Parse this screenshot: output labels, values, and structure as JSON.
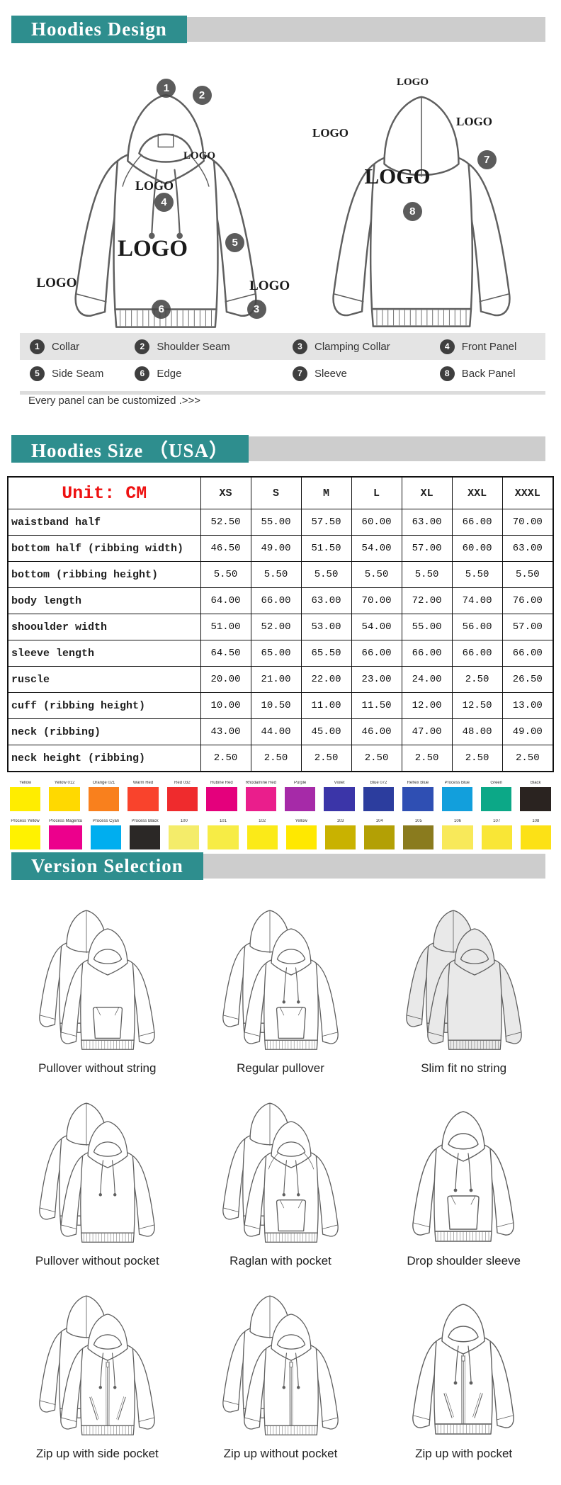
{
  "theme": {
    "teal": "#2e8e8e",
    "gray_strip": "#cdcdcd",
    "legend_bg": "#e4e4e4",
    "badge_bg": "#3f3f3f",
    "unit_red": "#ee1111"
  },
  "headers": {
    "design": "Hoodies Design",
    "size": "Hoodies Size （USA）",
    "version": "Version Selection"
  },
  "design": {
    "logo_text": "LOGO",
    "badges": [
      "1",
      "2",
      "3",
      "4",
      "5",
      "6",
      "7",
      "8"
    ]
  },
  "legend": {
    "rows": [
      [
        {
          "num": "1",
          "label": "Collar"
        },
        {
          "num": "2",
          "label": "Shoulder Seam"
        },
        {
          "num": "3",
          "label": "Clamping Collar"
        },
        {
          "num": "4",
          "label": "Front Panel"
        }
      ],
      [
        {
          "num": "5",
          "label": "Side Seam"
        },
        {
          "num": "6",
          "label": "Edge"
        },
        {
          "num": "7",
          "label": "Sleeve"
        },
        {
          "num": "8",
          "label": "Back Panel"
        }
      ]
    ],
    "note": "Every panel can be customized .>>>"
  },
  "size_table": {
    "unit_label": "Unit: CM",
    "columns": [
      "XS",
      "S",
      "M",
      "L",
      "XL",
      "XXL",
      "XXXL"
    ],
    "rows": [
      {
        "label": "waistband half",
        "values": [
          "52.50",
          "55.00",
          "57.50",
          "60.00",
          "63.00",
          "66.00",
          "70.00"
        ]
      },
      {
        "label": "bottom half (ribbing width)",
        "values": [
          "46.50",
          "49.00",
          "51.50",
          "54.00",
          "57.00",
          "60.00",
          "63.00"
        ]
      },
      {
        "label": "bottom (ribbing height)",
        "values": [
          "5.50",
          "5.50",
          "5.50",
          "5.50",
          "5.50",
          "5.50",
          "5.50"
        ]
      },
      {
        "label": "body length",
        "values": [
          "64.00",
          "66.00",
          "63.00",
          "70.00",
          "72.00",
          "74.00",
          "76.00"
        ]
      },
      {
        "label": "shooulder width",
        "values": [
          "51.00",
          "52.00",
          "53.00",
          "54.00",
          "55.00",
          "56.00",
          "57.00"
        ]
      },
      {
        "label": "sleeve length",
        "values": [
          "64.50",
          "65.00",
          "65.50",
          "66.00",
          "66.00",
          "66.00",
          "66.00"
        ]
      },
      {
        "label": "ruscle",
        "values": [
          "20.00",
          "21.00",
          "22.00",
          "23.00",
          "24.00",
          "2.50",
          "26.50"
        ]
      },
      {
        "label": "cuff (ribbing height)",
        "values": [
          "10.00",
          "10.50",
          "11.00",
          "11.50",
          "12.00",
          "12.50",
          "13.00"
        ]
      },
      {
        "label": "neck (ribbing)",
        "values": [
          "43.00",
          "44.00",
          "45.00",
          "46.00",
          "47.00",
          "48.00",
          "49.00"
        ]
      },
      {
        "label": "neck height (ribbing)",
        "values": [
          "2.50",
          "2.50",
          "2.50",
          "2.50",
          "2.50",
          "2.50",
          "2.50"
        ]
      }
    ]
  },
  "palette": {
    "row1": [
      {
        "name": "Yellow",
        "hex": "#FFED00"
      },
      {
        "name": "Yellow 012",
        "hex": "#FFD900"
      },
      {
        "name": "Orange 021",
        "hex": "#F9801D"
      },
      {
        "name": "Warm Red",
        "hex": "#F9432C"
      },
      {
        "name": "Red 032",
        "hex": "#EF2B2D"
      },
      {
        "name": "Rubine Red",
        "hex": "#E4007C"
      },
      {
        "name": "Rhodamine Red",
        "hex": "#EA1E8C"
      },
      {
        "name": "Purple",
        "hex": "#A62AA8"
      },
      {
        "name": "Violet",
        "hex": "#3B35A8"
      },
      {
        "name": "Blue 072",
        "hex": "#2C3D9E"
      },
      {
        "name": "Reflex Blue",
        "hex": "#2F4FB3"
      },
      {
        "name": "Process Blue",
        "hex": "#129FDC"
      },
      {
        "name": "Green",
        "hex": "#0CA887"
      },
      {
        "name": "Black",
        "hex": "#2A2320"
      }
    ],
    "row2": [
      {
        "name": "Process Yellow",
        "hex": "#FFF200"
      },
      {
        "name": "Process Magenta",
        "hex": "#EC008C"
      },
      {
        "name": "Process Cyan",
        "hex": "#00AEEF"
      },
      {
        "name": "Process Black",
        "hex": "#2B2826"
      },
      {
        "name": "100",
        "hex": "#F4EC6A"
      },
      {
        "name": "101",
        "hex": "#F7EC45"
      },
      {
        "name": "102",
        "hex": "#FBEA18"
      },
      {
        "name": "Yellow",
        "hex": "#FFE800"
      },
      {
        "name": "103",
        "hex": "#C9B200"
      },
      {
        "name": "104",
        "hex": "#B3A005"
      },
      {
        "name": "105",
        "hex": "#8A7B1E"
      },
      {
        "name": "106",
        "hex": "#F8E95A"
      },
      {
        "name": "107",
        "hex": "#F9E636"
      },
      {
        "name": "108",
        "hex": "#FCE116"
      }
    ]
  },
  "versions": [
    {
      "label": "Pullover without string",
      "variant": {
        "pair": true,
        "strings": false,
        "pocket": true,
        "zip": false,
        "sidePockets": false,
        "raglan": false,
        "fill": "#ffffff"
      }
    },
    {
      "label": "Regular pullover",
      "variant": {
        "pair": true,
        "strings": true,
        "pocket": true,
        "zip": false,
        "sidePockets": false,
        "raglan": false,
        "fill": "#ffffff"
      }
    },
    {
      "label": "Slim fit no string",
      "variant": {
        "pair": true,
        "strings": false,
        "pocket": false,
        "zip": false,
        "sidePockets": false,
        "raglan": false,
        "fill": "#e9e9e9"
      }
    },
    {
      "label": "Pullover without pocket",
      "variant": {
        "pair": true,
        "strings": true,
        "pocket": false,
        "zip": false,
        "sidePockets": false,
        "raglan": false,
        "fill": "#ffffff"
      }
    },
    {
      "label": "Raglan with pocket",
      "variant": {
        "pair": true,
        "strings": true,
        "pocket": true,
        "zip": false,
        "sidePockets": false,
        "raglan": true,
        "fill": "#ffffff"
      }
    },
    {
      "label": "Drop shoulder sleeve",
      "variant": {
        "pair": false,
        "strings": true,
        "pocket": true,
        "zip": false,
        "sidePockets": false,
        "raglan": false,
        "fill": "#ffffff"
      }
    },
    {
      "label": "Zip up with side pocket",
      "variant": {
        "pair": true,
        "strings": true,
        "pocket": false,
        "zip": true,
        "sidePockets": true,
        "raglan": false,
        "fill": "#ffffff"
      }
    },
    {
      "label": "Zip up without pocket",
      "variant": {
        "pair": true,
        "strings": true,
        "pocket": false,
        "zip": true,
        "sidePockets": false,
        "raglan": false,
        "fill": "#ffffff"
      }
    },
    {
      "label": "Zip up with pocket",
      "variant": {
        "pair": false,
        "strings": true,
        "pocket": false,
        "zip": true,
        "sidePockets": true,
        "raglan": false,
        "fill": "#ffffff"
      }
    }
  ]
}
